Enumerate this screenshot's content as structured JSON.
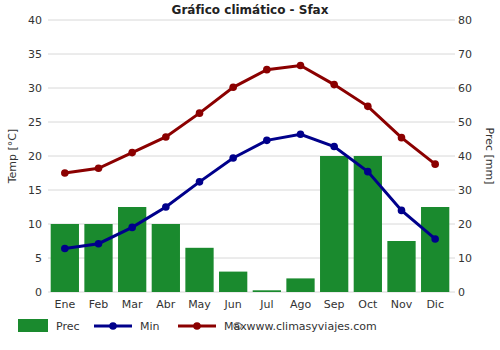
{
  "chart_data": {
    "type": "bar",
    "title": "Gráfico climático - Sfax",
    "ylabel": "Temp [°C]",
    "y2label": "Prec [mm]",
    "annotations": [
      "© www.climasyviajes.com"
    ],
    "categories": [
      "Ene",
      "Feb",
      "Mar",
      "Abr",
      "May",
      "Jun",
      "Jul",
      "Ago",
      "Sep",
      "Oct",
      "Nov",
      "Dic"
    ],
    "series": [
      {
        "name": "Prec",
        "type": "bar",
        "axis": "y2",
        "color": "#1a8a2e",
        "values": [
          20,
          20,
          25,
          20,
          13,
          6,
          0.5,
          4,
          40,
          40,
          15,
          25
        ]
      },
      {
        "name": "Min",
        "type": "line",
        "color": "#00008b",
        "marker": "circle",
        "values": [
          6.4,
          7.1,
          9.5,
          12.5,
          16.2,
          19.7,
          22.3,
          23.2,
          21.4,
          17.7,
          12.0,
          7.8
        ]
      },
      {
        "name": "Max",
        "type": "line",
        "color": "#8b0000",
        "marker": "circle",
        "values": [
          17.5,
          18.2,
          20.5,
          22.8,
          26.3,
          30.1,
          32.7,
          33.3,
          30.5,
          27.3,
          22.7,
          18.8
        ]
      }
    ],
    "ylim": [
      0,
      40
    ],
    "yticks": [
      0,
      5,
      10,
      15,
      20,
      25,
      30,
      35,
      40
    ],
    "y2lim": [
      0,
      80
    ],
    "y2ticks": [
      0,
      10,
      20,
      30,
      40,
      50,
      60,
      70,
      80
    ],
    "grid": true,
    "legend": "bottom"
  }
}
